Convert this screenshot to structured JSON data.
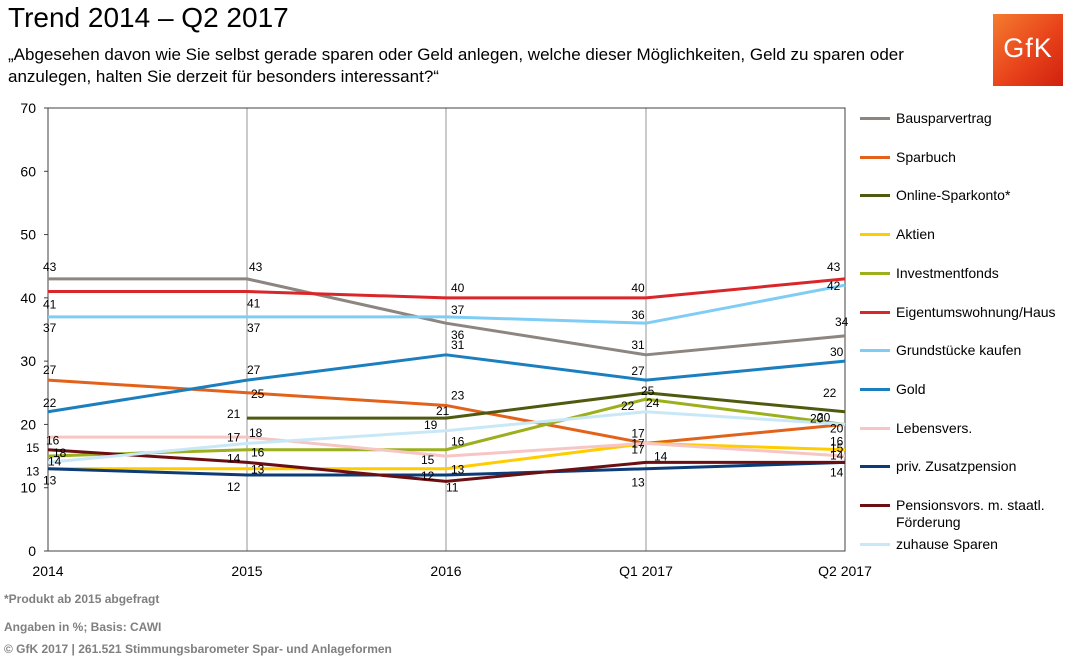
{
  "header": {
    "title": "Trend 2014 – Q2 2017",
    "subtitle": "„Abgesehen davon wie Sie selbst gerade sparen oder Geld anlegen, welche dieser Möglichkeiten, Geld zu sparen oder anzulegen, halten Sie derzeit für besonders interessant?“",
    "logo_text": "GfK"
  },
  "footer": {
    "note": "*Produkt ab 2015 abgefragt",
    "basis": "Angaben in %; Basis: CAWI",
    "source": "© GfK 2017 | 261.521 Stimmungsbarometer Spar- und Anlageformen"
  },
  "chart_data": {
    "type": "line",
    "categories": [
      "2014",
      "2015",
      "2016",
      "Q1 2017",
      "Q2 2017"
    ],
    "ylim": [
      0,
      70
    ],
    "yticks": [
      0,
      10,
      20,
      30,
      40,
      50,
      60,
      70
    ],
    "grid": "vertical lines at categories",
    "legend_position": "right",
    "series": [
      {
        "name": "Bausparvertrag",
        "color": "#8c8580",
        "values": [
          43,
          43,
          36,
          31,
          34
        ]
      },
      {
        "name": "Sparbuch",
        "color": "#e2621b",
        "values": [
          27,
          25,
          23,
          17,
          20
        ]
      },
      {
        "name": "Online-Sparkonto*",
        "color": "#4f5a10",
        "values": [
          null,
          21,
          21,
          25,
          22
        ]
      },
      {
        "name": "Aktien",
        "color": "#ffcc00",
        "values": [
          13,
          13,
          13,
          17,
          16
        ]
      },
      {
        "name": "Investmentfonds",
        "color": "#9bb01c",
        "values": [
          15,
          16,
          16,
          24,
          20
        ]
      },
      {
        "name": "Eigentumswohnung/Haus",
        "color": "#d9262a",
        "values": [
          41,
          41,
          40,
          40,
          43
        ]
      },
      {
        "name": "Grundstücke kaufen",
        "color": "#7fcdf5",
        "values": [
          37,
          37,
          37,
          36,
          42
        ]
      },
      {
        "name": "Gold",
        "color": "#1b7fbf",
        "values": [
          22,
          27,
          31,
          27,
          30
        ]
      },
      {
        "name": "Lebensvers.",
        "color": "#f7c6c4",
        "values": [
          18,
          18,
          15,
          17,
          15
        ]
      },
      {
        "name": "priv. Zusatzpension",
        "color": "#0b3c78",
        "values": [
          13,
          12,
          12,
          13,
          14
        ]
      },
      {
        "name": "Pensionsvors. m. staatl. Förderung",
        "color": "#6b0f12",
        "values": [
          16,
          14,
          11,
          14,
          14
        ]
      },
      {
        "name": "zuhause Sparen",
        "color": "#c9e8f7",
        "values": [
          14,
          17,
          19,
          22,
          20
        ]
      }
    ]
  }
}
